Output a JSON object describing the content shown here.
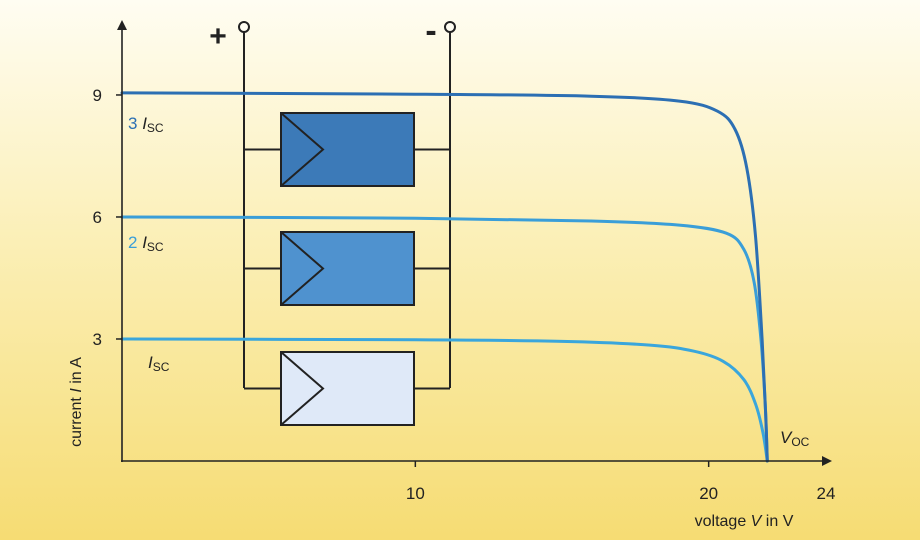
{
  "chart_data": {
    "type": "line",
    "title": "",
    "xlabel": {
      "prefix": "voltage ",
      "symbol": "V",
      "suffix": " in V"
    },
    "ylabel": {
      "prefix": "current ",
      "symbol": "I",
      "suffix": " in A"
    },
    "xlim": [
      0,
      24
    ],
    "ylim": [
      0,
      10
    ],
    "xticks": [
      10,
      20,
      24
    ],
    "yticks": [
      3,
      6,
      9
    ],
    "voc": 22.0,
    "voc_label": {
      "symbol": "V",
      "sub": "OC"
    },
    "series": [
      {
        "name": "",
        "label_num": "",
        "label_symbol": "I",
        "label_sub": "SC",
        "isc": 3,
        "color": "#3aa6dc",
        "points": [
          [
            0,
            3.0
          ],
          [
            10,
            2.98
          ],
          [
            15,
            2.94
          ],
          [
            18,
            2.85
          ],
          [
            19.5,
            2.7
          ],
          [
            20.5,
            2.45
          ],
          [
            21.2,
            2.0
          ],
          [
            21.6,
            1.4
          ],
          [
            21.85,
            0.7
          ],
          [
            22.0,
            0
          ]
        ]
      },
      {
        "name": "",
        "label_num": "2",
        "label_symbol": "I",
        "label_sub": "SC",
        "isc": 6,
        "color": "#3a9ed8",
        "points": [
          [
            0,
            6.0
          ],
          [
            10,
            5.97
          ],
          [
            16,
            5.9
          ],
          [
            19,
            5.8
          ],
          [
            20.6,
            5.6
          ],
          [
            21.2,
            5.2
          ],
          [
            21.55,
            4.4
          ],
          [
            21.78,
            3.0
          ],
          [
            21.92,
            1.5
          ],
          [
            22.0,
            0
          ]
        ]
      },
      {
        "name": "",
        "label_num": "3",
        "label_symbol": "I",
        "label_sub": "SC",
        "isc": 9,
        "color": "#2c6fb3",
        "points": [
          [
            0,
            9.05
          ],
          [
            10,
            9.02
          ],
          [
            16,
            8.97
          ],
          [
            19,
            8.85
          ],
          [
            20.3,
            8.6
          ],
          [
            20.9,
            8.15
          ],
          [
            21.3,
            7.2
          ],
          [
            21.6,
            5.5
          ],
          [
            21.82,
            3.0
          ],
          [
            21.94,
            1.2
          ],
          [
            22.0,
            0
          ]
        ]
      }
    ]
  },
  "circuit": {
    "plus": "+",
    "minus": "-",
    "modules": [
      {
        "fill": "#3c7ab8"
      },
      {
        "fill": "#4f92cf"
      },
      {
        "fill": "#dfe9f8"
      }
    ]
  }
}
